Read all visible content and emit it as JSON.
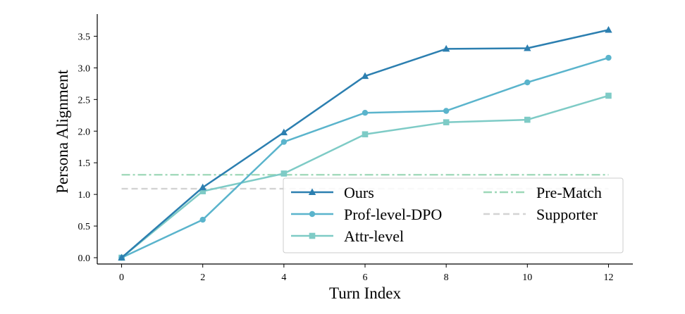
{
  "chart_data": {
    "type": "line",
    "xlabel": "Turn Index",
    "ylabel": "Persona Alignment",
    "x": [
      0,
      2,
      4,
      6,
      8,
      10,
      12
    ],
    "xlim": [
      -0.6,
      12.6
    ],
    "ylim": [
      -0.1,
      3.85
    ],
    "xticks": [
      0,
      2,
      4,
      6,
      8,
      10,
      12
    ],
    "yticks": [
      0.0,
      0.5,
      1.0,
      1.5,
      2.0,
      2.5,
      3.0,
      3.5
    ],
    "ytick_labels": [
      "0.0",
      "0.5",
      "1.0",
      "1.5",
      "2.0",
      "2.5",
      "3.0",
      "3.5"
    ],
    "grid": false,
    "legend_position": "lower-right",
    "series": [
      {
        "name": "Ours",
        "values": [
          0.0,
          1.11,
          1.98,
          2.87,
          3.3,
          3.31,
          3.6
        ],
        "color": "#2c7fb0",
        "marker": "triangle",
        "linestyle": "solid"
      },
      {
        "name": "Prof-level-DPO",
        "values": [
          0.0,
          0.6,
          1.83,
          2.29,
          2.32,
          2.77,
          3.16
        ],
        "color": "#5ab4cc",
        "marker": "circle",
        "linestyle": "solid"
      },
      {
        "name": "Attr-level",
        "values": [
          0.0,
          1.05,
          1.33,
          1.95,
          2.14,
          2.18,
          2.56
        ],
        "color": "#7ecbc6",
        "marker": "square",
        "linestyle": "solid"
      }
    ],
    "reference_lines": [
      {
        "name": "Pre-Match",
        "value": 1.31,
        "color": "#9dd8b8",
        "linestyle": "dashdot",
        "x_range": [
          0,
          12
        ]
      },
      {
        "name": "Supporter",
        "value": 1.09,
        "color": "#d3d3d3",
        "linestyle": "dashed",
        "x_range": [
          0,
          12
        ]
      }
    ]
  }
}
